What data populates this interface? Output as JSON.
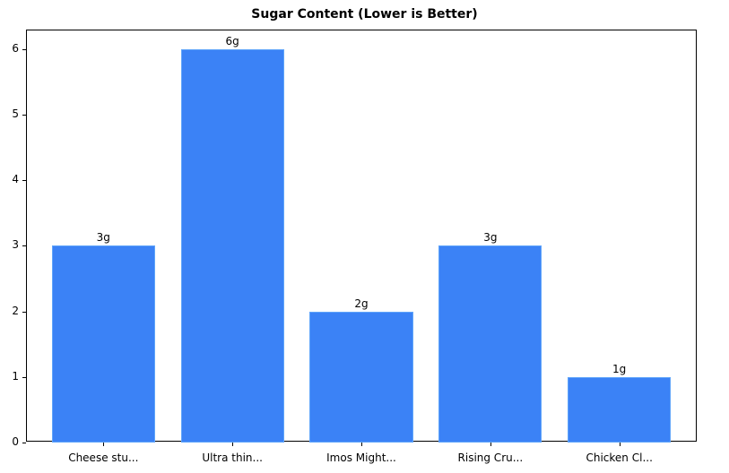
{
  "chart_data": {
    "type": "bar",
    "title": "Sugar Content (Lower is Better)",
    "xlabel": "",
    "ylabel": "",
    "categories": [
      "Cheese stu...",
      "Ultra thin...",
      "Imos Might...",
      "Rising Cru...",
      "Chicken Cl..."
    ],
    "values": [
      3,
      6,
      2,
      3,
      1
    ],
    "value_labels": [
      "3g",
      "6g",
      "2g",
      "3g",
      "1g"
    ],
    "ylim": [
      0,
      6.3
    ],
    "yticks": [
      0,
      1,
      2,
      3,
      4,
      5,
      6
    ],
    "grid": false,
    "legend": null,
    "bar_color": "#3b82f6"
  }
}
